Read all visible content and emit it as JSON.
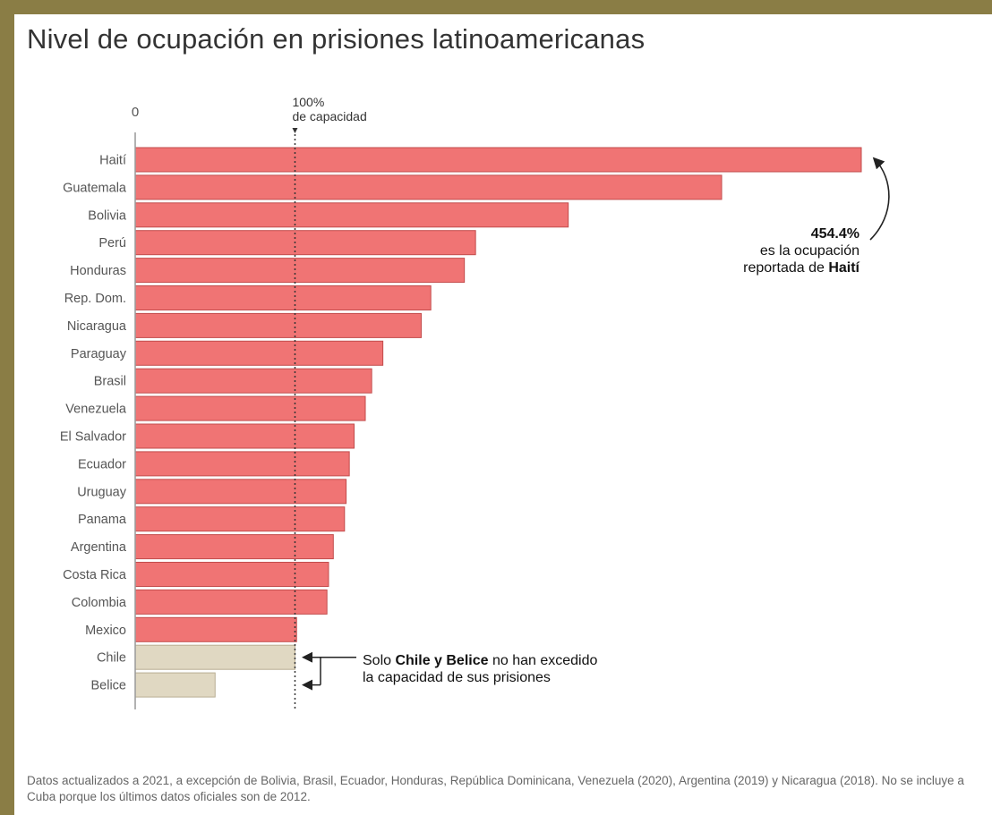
{
  "title": "Nivel de ocupación en prisiones latinoamericanas",
  "footnote": "Datos actualizados a 2021, a excepción de Bolivia, Brasil, Ecuador, Honduras, República Dominicana, Venezuela (2020), Argentina (2019) y Nicaragua (2018). No se incluye a Cuba porque los últimos datos oficiales son de 2012.",
  "colors": {
    "frame": "#8a7d45",
    "over_capacity": "#f07474",
    "under_capacity": "#e0d8c2",
    "bar_edge": "#c24c4c",
    "under_edge": "#b8ad92",
    "text": "#555555",
    "axis": "#999999"
  },
  "chart_data": {
    "type": "bar",
    "orientation": "horizontal",
    "categories": [
      "Haití",
      "Guatemala",
      "Bolivia",
      "Perú",
      "Honduras",
      "Rep. Dom.",
      "Nicaragua",
      "Paraguay",
      "Brasil",
      "Venezuela",
      "El Salvador",
      "Ecuador",
      "Uruguay",
      "Panama",
      "Argentina",
      "Costa Rica",
      "Colombia",
      "Mexico",
      "Chile",
      "Belice"
    ],
    "values": [
      454.4,
      367,
      271,
      213,
      206,
      185,
      179,
      155,
      148,
      144,
      137,
      134,
      132,
      131,
      124,
      121,
      120,
      101,
      100,
      50
    ],
    "xlim": [
      0,
      454.4
    ],
    "zero_label": "0",
    "reference_line": {
      "value": 100,
      "label_line1": "100%",
      "label_line2": "de capacidad"
    },
    "grid": false,
    "annotations": [
      {
        "target": "Haití",
        "value_text": "454.4%",
        "line2": "es la ocupación",
        "line3_plain": "reportada de ",
        "line3_bold": "Haití"
      },
      {
        "target": [
          "Chile",
          "Belice"
        ],
        "line1_plain_1": "Solo ",
        "line1_bold": "Chile y Belice",
        "line1_plain_2": " no han excedido",
        "line2": "la capacidad de sus prisiones"
      }
    ]
  }
}
